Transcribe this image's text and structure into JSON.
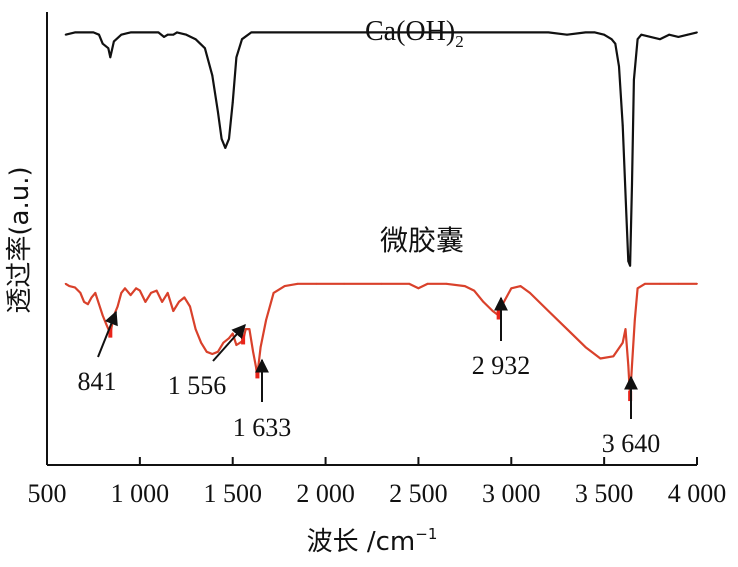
{
  "chart_data": {
    "type": "line",
    "xlabel": "波长 /cm",
    "xlabel_sup": "−1",
    "ylabel": "透过率(a.u.)",
    "xlim": [
      500,
      4000
    ],
    "xticks": [
      500,
      1000,
      1500,
      2000,
      2500,
      3000,
      3500,
      4000
    ],
    "xtick_labels": [
      "500",
      "1 000",
      "1 500",
      "2 000",
      "2 500",
      "3 000",
      "3 500",
      "4 000"
    ],
    "ylim": [
      0,
      1
    ],
    "grid": false,
    "series": [
      {
        "name": "Ca(OH)",
        "name_sub": "2",
        "color": "#111111",
        "x": [
          600,
          650,
          700,
          750,
          780,
          800,
          830,
          841,
          860,
          900,
          950,
          1000,
          1050,
          1100,
          1130,
          1150,
          1180,
          1200,
          1250,
          1300,
          1350,
          1390,
          1420,
          1440,
          1460,
          1480,
          1500,
          1520,
          1550,
          1600,
          1700,
          1800,
          2000,
          2200,
          2400,
          2600,
          2800,
          3000,
          3200,
          3300,
          3400,
          3450,
          3500,
          3540,
          3560,
          3580,
          3600,
          3620,
          3630,
          3640,
          3650,
          3660,
          3680,
          3700,
          3750,
          3800,
          3850,
          3900,
          3950,
          4000
        ],
        "y": [
          0.95,
          0.955,
          0.955,
          0.955,
          0.95,
          0.93,
          0.92,
          0.9,
          0.935,
          0.95,
          0.955,
          0.955,
          0.955,
          0.955,
          0.945,
          0.95,
          0.95,
          0.955,
          0.95,
          0.94,
          0.92,
          0.86,
          0.78,
          0.72,
          0.7,
          0.72,
          0.8,
          0.9,
          0.94,
          0.955,
          0.955,
          0.955,
          0.955,
          0.955,
          0.955,
          0.955,
          0.955,
          0.955,
          0.955,
          0.95,
          0.955,
          0.955,
          0.95,
          0.94,
          0.93,
          0.88,
          0.75,
          0.55,
          0.45,
          0.44,
          0.62,
          0.85,
          0.94,
          0.95,
          0.945,
          0.94,
          0.95,
          0.945,
          0.95,
          0.955
        ]
      },
      {
        "name": "微胶囊",
        "color": "#d9412b",
        "x": [
          600,
          620,
          650,
          680,
          700,
          720,
          740,
          760,
          780,
          800,
          820,
          841,
          860,
          880,
          900,
          920,
          950,
          980,
          1000,
          1030,
          1060,
          1090,
          1120,
          1150,
          1180,
          1210,
          1240,
          1270,
          1300,
          1330,
          1360,
          1390,
          1420,
          1450,
          1480,
          1500,
          1520,
          1540,
          1556,
          1570,
          1590,
          1610,
          1633,
          1650,
          1680,
          1720,
          1780,
          1850,
          1950,
          2100,
          2300,
          2450,
          2500,
          2550,
          2650,
          2750,
          2800,
          2850,
          2900,
          2932,
          2960,
          3000,
          3050,
          3100,
          3200,
          3300,
          3400,
          3480,
          3550,
          3600,
          3615,
          3630,
          3640,
          3650,
          3665,
          3680,
          3720,
          3800,
          3900,
          4000
        ],
        "y": [
          0.4,
          0.395,
          0.392,
          0.38,
          0.36,
          0.355,
          0.37,
          0.38,
          0.355,
          0.33,
          0.31,
          0.29,
          0.33,
          0.35,
          0.38,
          0.39,
          0.375,
          0.39,
          0.385,
          0.36,
          0.38,
          0.385,
          0.36,
          0.38,
          0.34,
          0.36,
          0.37,
          0.35,
          0.3,
          0.27,
          0.25,
          0.245,
          0.25,
          0.27,
          0.28,
          0.29,
          0.265,
          0.27,
          0.275,
          0.3,
          0.3,
          0.25,
          0.2,
          0.26,
          0.32,
          0.38,
          0.395,
          0.4,
          0.4,
          0.4,
          0.4,
          0.4,
          0.39,
          0.4,
          0.4,
          0.395,
          0.385,
          0.36,
          0.34,
          0.33,
          0.36,
          0.39,
          0.395,
          0.38,
          0.34,
          0.3,
          0.26,
          0.235,
          0.24,
          0.27,
          0.3,
          0.22,
          0.15,
          0.22,
          0.32,
          0.39,
          0.4,
          0.4,
          0.4,
          0.4
        ]
      }
    ],
    "annotations": [
      {
        "label": "841",
        "x": 841,
        "series": 1
      },
      {
        "label": "1 556",
        "x": 1556,
        "series": 1
      },
      {
        "label": "1 633",
        "x": 1633,
        "series": 1
      },
      {
        "label": "2 932",
        "x": 2932,
        "series": 1
      },
      {
        "label": "3 640",
        "x": 3640,
        "series": 1
      }
    ]
  }
}
